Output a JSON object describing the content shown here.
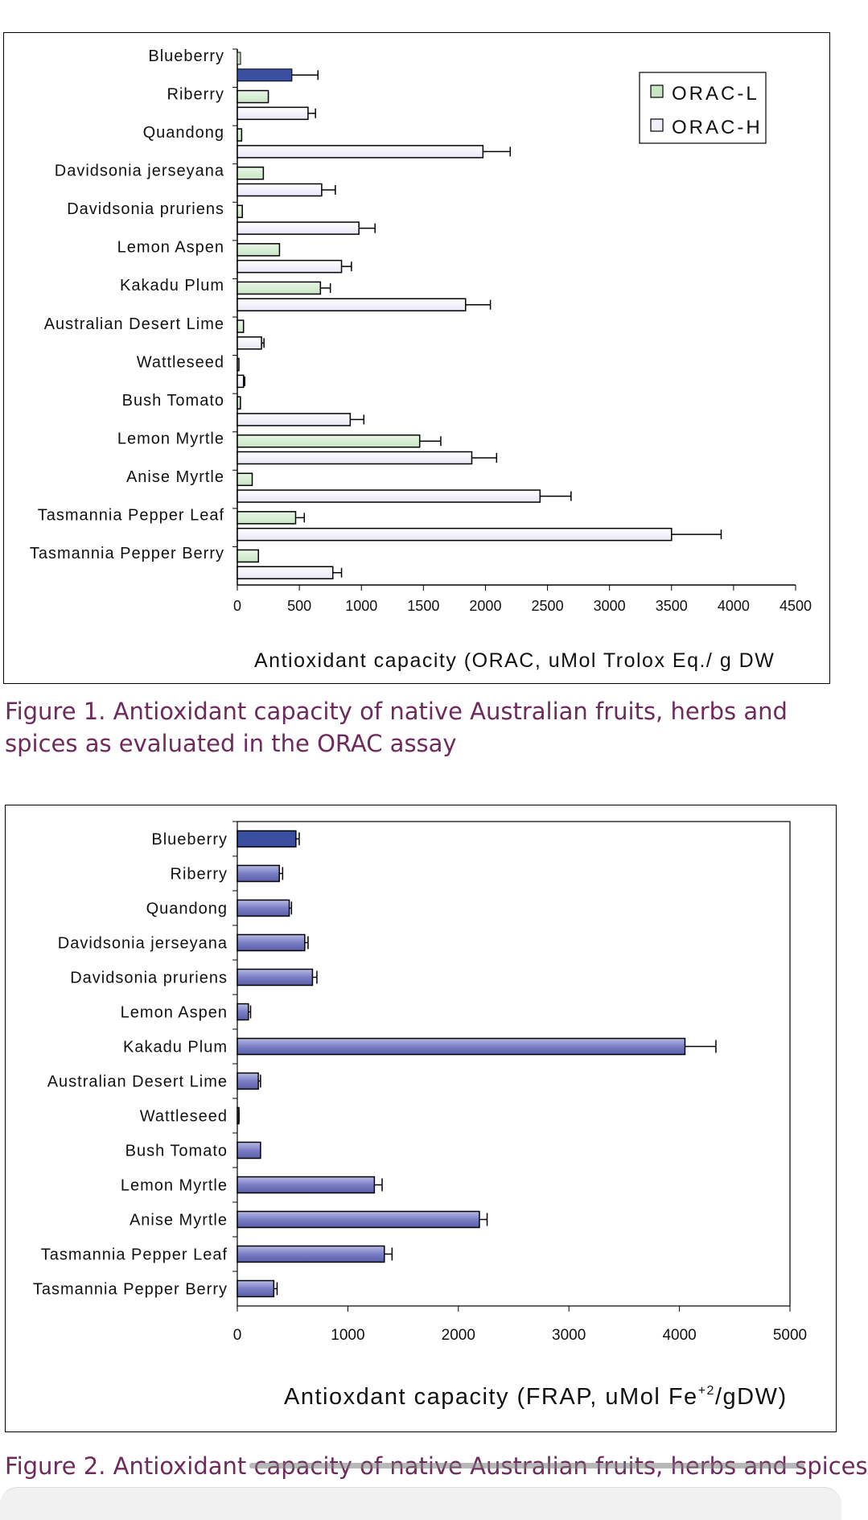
{
  "figures": [
    {
      "caption": "Figure 1. Antioxidant capacity of native Australian fruits, herbs and spices as evaluated in the ORAC assay"
    },
    {
      "caption": "Figure 2. Antioxidant capacity of native Australian fruits, herbs and spices"
    }
  ],
  "chart_data": [
    {
      "type": "bar",
      "orientation": "horizontal",
      "categories": [
        "Blueberry",
        "Riberry",
        "Quandong",
        "Davidsonia jerseyana",
        "Davidsonia pruriens",
        "Lemon Aspen",
        "Kakadu Plum",
        "Australian Desert Lime",
        "Wattleseed",
        "Bush Tomato",
        "Lemon Myrtle",
        "Anise Myrtle",
        "Tasmannia Pepper Leaf",
        "Tasmannia Pepper Berry"
      ],
      "series": [
        {
          "name": "ORAC-L",
          "color": "#c8e6c4",
          "values": [
            8,
            250,
            35,
            210,
            40,
            340,
            670,
            50,
            8,
            25,
            1470,
            120,
            470,
            170
          ],
          "errors": [
            0,
            0,
            0,
            0,
            0,
            0,
            80,
            0,
            0,
            0,
            170,
            0,
            70,
            0
          ]
        },
        {
          "name": "ORAC-H",
          "color": "#e8e6f6",
          "values": [
            null,
            570,
            1980,
            680,
            980,
            840,
            1840,
            195,
            50,
            910,
            1890,
            2440,
            3500,
            770
          ],
          "errors": [
            null,
            60,
            220,
            110,
            130,
            80,
            200,
            20,
            10,
            110,
            200,
            250,
            400,
            70
          ]
        }
      ],
      "highlight": {
        "category": "Blueberry",
        "value": 440,
        "error": 210,
        "color": "#3a4fa0"
      },
      "xlim": [
        0,
        4500
      ],
      "xticks": [
        "0",
        "500",
        "1000",
        "1500",
        "2000",
        "2500",
        "3000",
        "3500",
        "4000",
        "4500"
      ],
      "xlabel": "Antioxidant capacity (ORAC, uMol Trolox Eq./ g DW",
      "legend": {
        "position": "top-right",
        "entries": [
          "ORAC-L",
          "ORAC-H"
        ]
      },
      "grid": false
    },
    {
      "type": "bar",
      "orientation": "horizontal",
      "categories": [
        "Blueberry",
        "Riberry",
        "Quandong",
        "Davidsonia jerseyana",
        "Davidsonia pruriens",
        "Lemon Aspen",
        "Kakadu Plum",
        "Australian Desert Lime",
        "Wattleseed",
        "Bush Tomato",
        "Lemon Myrtle",
        "Anise Myrtle",
        "Tasmannia Pepper Leaf",
        "Tasmannia Pepper Berry"
      ],
      "values": [
        530,
        380,
        470,
        610,
        680,
        100,
        4050,
        190,
        10,
        210,
        1240,
        2190,
        1330,
        330
      ],
      "errors": [
        30,
        30,
        20,
        30,
        40,
        20,
        280,
        20,
        5,
        0,
        70,
        70,
        70,
        30
      ],
      "color": "#7a7ec4",
      "highlight": {
        "category": "Blueberry",
        "color": "#3a4fa0"
      },
      "xlim": [
        0,
        5000
      ],
      "xticks": [
        "0",
        "1000",
        "2000",
        "3000",
        "4000",
        "5000"
      ],
      "xlabel": "Antioxdant capacity (FRAP, uMol Fe",
      "xlabel_sup": "+2",
      "xlabel_tail": "/gDW)",
      "grid": false
    }
  ]
}
